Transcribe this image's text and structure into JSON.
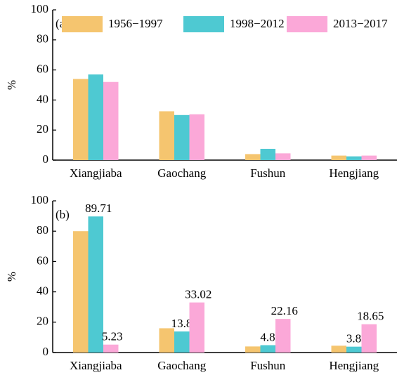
{
  "chart_data": [
    {
      "type": "bar",
      "panel_label": "(a)",
      "ylabel": "%",
      "categories": [
        "Xiangjiaba",
        "Gaochang",
        "Fushun",
        "Hengjiang"
      ],
      "series": [
        {
          "name": "1956−1997",
          "color": "#f5c56f",
          "values": [
            54,
            32.5,
            4,
            3
          ]
        },
        {
          "name": "1998−2012",
          "color": "#4ec9d2",
          "values": [
            57,
            30,
            7.5,
            2.5
          ]
        },
        {
          "name": "2013−2017",
          "color": "#fba8d8",
          "values": [
            52,
            30.5,
            4.5,
            3
          ]
        }
      ],
      "ylim": [
        0,
        100
      ],
      "yticks": [
        0,
        20,
        40,
        60,
        80,
        100
      ],
      "legend": "top"
    },
    {
      "type": "bar",
      "panel_label": "(b)",
      "ylabel": "%",
      "categories": [
        "Xiangjiaba",
        "Gaochang",
        "Fushun",
        "Hengjiang"
      ],
      "series": [
        {
          "color": "#f5c56f",
          "values": [
            80,
            16,
            4,
            4.5
          ],
          "show_labels": false
        },
        {
          "color": "#4ec9d2",
          "values": [
            89.71,
            13.89,
            4.85,
            3.86
          ],
          "show_labels": true
        },
        {
          "color": "#fba8d8",
          "values": [
            5.23,
            33.02,
            22.16,
            18.65
          ],
          "show_labels": true
        }
      ],
      "ylim": [
        0,
        100
      ],
      "yticks": [
        0,
        20,
        40,
        60,
        80,
        100
      ]
    }
  ]
}
